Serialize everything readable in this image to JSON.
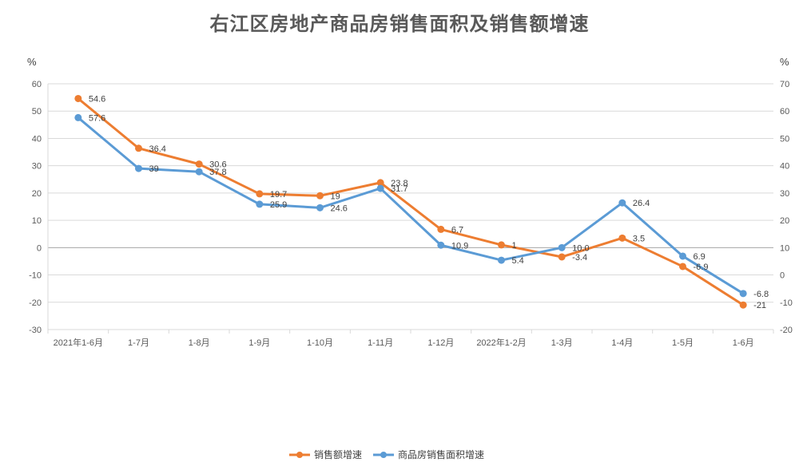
{
  "chart_data": {
    "type": "line",
    "title": "右江区房地产商品房销售面积及销售额增速",
    "left_axis": {
      "unit": "%",
      "min": -30,
      "max": 60,
      "step": 10
    },
    "right_axis": {
      "unit": "%",
      "min": -20,
      "max": 70,
      "step": 10
    },
    "categories": [
      "2021年1-6月",
      "1-7月",
      "1-8月",
      "1-9月",
      "1-10月",
      "1-11月",
      "1-12月",
      "2022年1-2月",
      "1-3月",
      "1-4月",
      "1-5月",
      "1-6月"
    ],
    "series": [
      {
        "name": "销售额增速",
        "axis": "left",
        "color": "#ED7D31",
        "values": [
          54.6,
          36.4,
          30.6,
          19.7,
          19,
          23.8,
          6.7,
          1,
          -3.4,
          3.5,
          -6.9,
          -21
        ],
        "labels": [
          "54.6",
          "36.4",
          "30.6",
          "19.7",
          "19",
          "23.8",
          "6.7",
          "1",
          "-3.4",
          "3.5",
          "-6.9",
          "-21"
        ]
      },
      {
        "name": "商品房销售面积增速",
        "axis": "right",
        "color": "#5B9BD5",
        "values": [
          57.6,
          39,
          37.8,
          25.9,
          24.6,
          31.7,
          10.9,
          5.4,
          10.0,
          26.4,
          6.9,
          -6.8
        ],
        "labels": [
          "57.6",
          "39",
          "37.8",
          "25.9",
          "24.6",
          "31.7",
          "10.9",
          "5.4",
          "10.0",
          "26.4",
          "6.9",
          "-6.8"
        ]
      }
    ],
    "grid": true,
    "legend_position": "bottom"
  }
}
